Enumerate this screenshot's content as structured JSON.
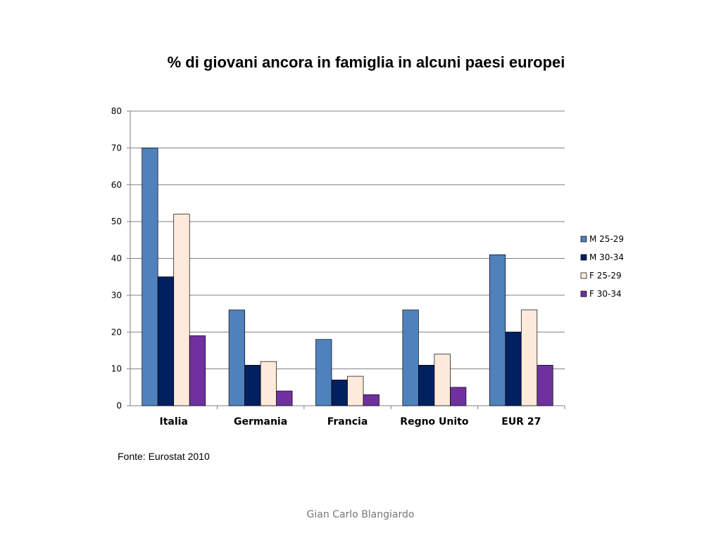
{
  "title": "% di giovani ancora in famiglia in alcuni paesi europei",
  "source": "Fonte: Eurostat 2010",
  "author": "Gian Carlo Blangiardo",
  "chart_data": {
    "type": "bar",
    "categories": [
      "Italia",
      "Germania",
      "Francia",
      "Regno Unito",
      "EUR 27"
    ],
    "series": [
      {
        "name": "M 25-29",
        "values": [
          70,
          26,
          18,
          26,
          41
        ],
        "color": "#4F81BD"
      },
      {
        "name": "M 30-34",
        "values": [
          35,
          11,
          7,
          11,
          20
        ],
        "color": "#002060"
      },
      {
        "name": "F 25-29",
        "values": [
          52,
          12,
          8,
          14,
          26
        ],
        "color": "#FDEADA"
      },
      {
        "name": "F 30-34",
        "values": [
          19,
          4,
          3,
          5,
          11
        ],
        "color": "#7030A0"
      }
    ],
    "yticks": [
      0,
      10,
      20,
      30,
      40,
      50,
      60,
      70,
      80
    ],
    "ylim": [
      0,
      80
    ],
    "grid": true,
    "legend": "right"
  }
}
